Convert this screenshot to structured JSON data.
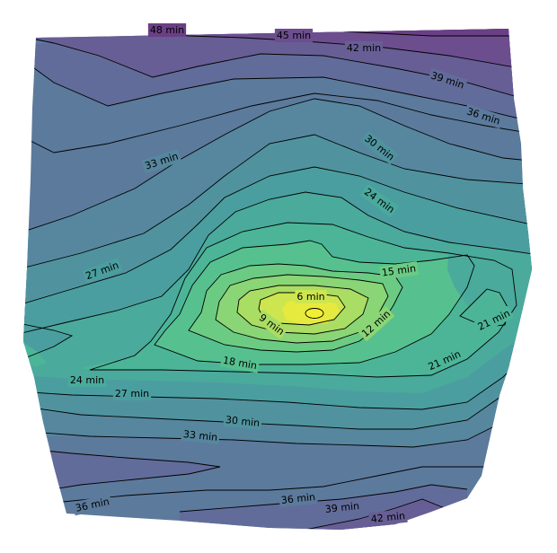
{
  "map": {
    "type": "isochrone-contour-map",
    "unit": "min",
    "colormap": "viridis",
    "band_colors": {
      "48": "#6a3f86",
      "45": "#6c4e8f",
      "42": "#675e95",
      "39": "#626c9a",
      "36": "#5c7a9c",
      "33": "#56879e",
      "30": "#50939f",
      "27": "#4b9e9f",
      "24": "#4aaa9c",
      "21": "#4cb597",
      "18": "#56c18f",
      "15": "#6ccb83",
      "12": "#8ad575",
      "9": "#aadd63",
      "6": "#cde64f",
      "3": "#e7ea3e"
    },
    "contour_labels": [
      {
        "text": "48 min",
        "value": 48
      },
      {
        "text": "45 min",
        "value": 45
      },
      {
        "text": "42 min",
        "value": 42
      },
      {
        "text": "39 min",
        "value": 39
      },
      {
        "text": "36 min",
        "value": 36
      },
      {
        "text": "33 min",
        "value": 33
      },
      {
        "text": "30 min",
        "value": 30
      },
      {
        "text": "24 min",
        "value": 24
      },
      {
        "text": "27 min",
        "value": 27
      },
      {
        "text": "15 min",
        "value": 15
      },
      {
        "text": "6 min",
        "value": 6
      },
      {
        "text": "9 min",
        "value": 9
      },
      {
        "text": "12 min",
        "value": 12
      },
      {
        "text": "21 min",
        "value": 21
      },
      {
        "text": "18 min",
        "value": 18
      },
      {
        "text": "21 min",
        "value": 21
      },
      {
        "text": "24 min",
        "value": 24
      },
      {
        "text": "27 min",
        "value": 27
      },
      {
        "text": "30 min",
        "value": 30
      },
      {
        "text": "33 min",
        "value": 33
      },
      {
        "text": "36 min",
        "value": 36
      },
      {
        "text": "36 min",
        "value": 36
      },
      {
        "text": "39 min",
        "value": 39
      },
      {
        "text": "42 min",
        "value": 42
      }
    ]
  }
}
